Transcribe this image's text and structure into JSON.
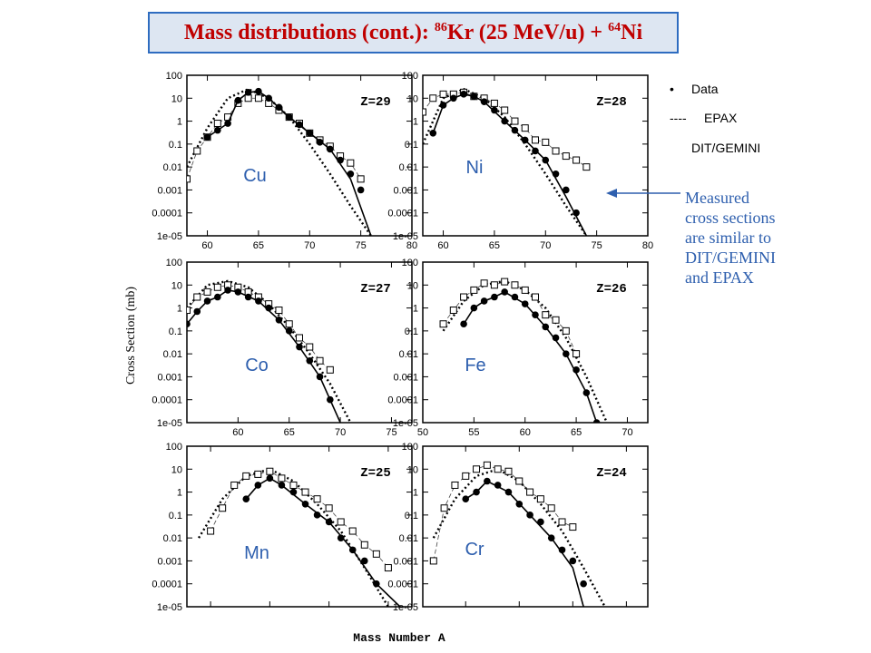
{
  "title": {
    "prefix": "Mass distributions (cont.): ",
    "proj_mass": "86",
    "proj": "Kr (25 MeV/u) + ",
    "targ_mass": "64",
    "targ": "Ni"
  },
  "legend": {
    "data_marker": "•",
    "data_label": "Data",
    "epax_marker": "----",
    "epax_label": "EPAX",
    "dit_marker": "",
    "dit_label": "DIT/GEMINI"
  },
  "annotation": {
    "lines": [
      "Measured",
      "cross sections",
      "are similar to",
      "DIT/GEMINI",
      "and EPAX"
    ]
  },
  "colors": {
    "title": "#c00000",
    "title_border": "#2e6cc0",
    "title_bg": "#dde6f2",
    "element_label": "#2e5fae",
    "annotation": "#2e5fae",
    "arrow": "#2e5fae"
  },
  "chart_data": {
    "type": "scatter",
    "ylabel": "Cross Section (mb)",
    "xlabel": "Mass Number A",
    "yscale": "log",
    "ylim": [
      1e-05,
      100
    ],
    "yticks": [
      "100",
      "10",
      "1",
      "0.1",
      "0.01",
      "0.001",
      "0.0001",
      "1e-05"
    ],
    "panels": [
      {
        "element": "Cu",
        "zlabel": "Z=29",
        "xlim": [
          58,
          80
        ],
        "xticks": [
          60,
          65,
          70,
          75,
          80
        ],
        "show_x_ticklabels": true,
        "data": {
          "x": [
            60,
            61,
            62,
            63,
            64,
            65,
            66,
            67,
            68,
            69,
            70,
            71,
            72,
            73,
            74,
            75
          ],
          "y": [
            0.2,
            0.4,
            0.8,
            8,
            18,
            20,
            10,
            4,
            1.5,
            0.7,
            0.3,
            0.12,
            0.06,
            0.02,
            0.005,
            0.001
          ]
        },
        "dit": {
          "x": [
            58,
            59,
            60,
            61,
            62,
            63,
            64,
            65,
            66,
            67,
            68,
            69,
            70,
            71,
            72,
            73,
            74,
            75
          ],
          "y": [
            0.003,
            0.05,
            0.2,
            0.8,
            1.5,
            6,
            10,
            10,
            6,
            3,
            1.5,
            0.8,
            0.3,
            0.15,
            0.08,
            0.03,
            0.015,
            0.003
          ]
        },
        "epax": {
          "x": [
            58,
            60,
            62,
            64,
            66,
            68,
            70,
            72,
            74,
            76
          ],
          "y": [
            0.01,
            0.5,
            10,
            25,
            10,
            1.5,
            0.1,
            0.005,
            0.0002,
            1e-05
          ]
        },
        "line": {
          "x": [
            60,
            62,
            63,
            64,
            65,
            66,
            68,
            70,
            72,
            74,
            76
          ],
          "y": [
            0.2,
            0.8,
            8,
            18,
            20,
            10,
            1.5,
            0.3,
            0.06,
            0.003,
            1e-05
          ]
        }
      },
      {
        "element": "Ni",
        "zlabel": "Z=28",
        "xlim": [
          58,
          80
        ],
        "xticks": [
          60,
          65,
          70,
          75,
          80
        ],
        "show_x_ticklabels": true,
        "data": {
          "x": [
            59,
            60,
            61,
            62,
            63,
            64,
            65,
            66,
            67,
            68,
            69,
            70,
            71,
            72,
            73
          ],
          "y": [
            0.3,
            5,
            10,
            15,
            12,
            7,
            3,
            1,
            0.4,
            0.15,
            0.05,
            0.02,
            0.005,
            0.001,
            0.0001
          ]
        },
        "dit": {
          "x": [
            58,
            59,
            60,
            61,
            62,
            63,
            64,
            65,
            66,
            67,
            68,
            69,
            70,
            71,
            72,
            73,
            74
          ],
          "y": [
            2.5,
            10,
            15,
            15,
            18,
            12,
            10,
            6,
            3,
            1,
            0.5,
            0.15,
            0.12,
            0.05,
            0.03,
            0.02,
            0.01
          ]
        },
        "epax": {
          "x": [
            58,
            60,
            62,
            64,
            66,
            68,
            70,
            72,
            74
          ],
          "y": [
            0.1,
            10,
            25,
            10,
            1.5,
            0.1,
            0.005,
            0.0002,
            1e-05
          ]
        },
        "line": {
          "x": [
            59,
            60,
            61,
            62,
            63,
            64,
            66,
            68,
            70,
            72,
            74
          ],
          "y": [
            0.3,
            5,
            10,
            15,
            12,
            7,
            1,
            0.15,
            0.02,
            0.0005,
            1e-05
          ]
        }
      },
      {
        "element": "Co",
        "zlabel": "Z=27",
        "xlim": [
          55,
          77
        ],
        "xticks": [
          60,
          65,
          70,
          75
        ],
        "show_x_ticklabels": true,
        "data": {
          "x": [
            55,
            56,
            57,
            58,
            59,
            60,
            61,
            62,
            63,
            64,
            65,
            66,
            67,
            68,
            69
          ],
          "y": [
            0.2,
            0.7,
            2,
            3,
            6,
            5,
            3,
            2,
            1,
            0.3,
            0.1,
            0.02,
            0.005,
            0.001,
            0.0001
          ]
        },
        "dit": {
          "x": [
            55,
            56,
            57,
            58,
            59,
            60,
            61,
            62,
            63,
            64,
            65,
            66,
            67,
            68,
            69
          ],
          "y": [
            0.8,
            3,
            5,
            8,
            10,
            8,
            5,
            3,
            1.5,
            0.8,
            0.2,
            0.05,
            0.02,
            0.005,
            0.002
          ]
        },
        "epax": {
          "x": [
            55,
            57,
            59,
            61,
            63,
            65,
            67,
            69,
            71
          ],
          "y": [
            1,
            10,
            15,
            8,
            1.5,
            0.15,
            0.01,
            0.0005,
            1e-05
          ]
        },
        "line": {
          "x": [
            55,
            56,
            57,
            58,
            59,
            60,
            62,
            64,
            66,
            68,
            70
          ],
          "y": [
            0.2,
            0.7,
            2,
            3,
            6,
            5,
            2,
            0.3,
            0.02,
            0.001,
            1e-05
          ]
        }
      },
      {
        "element": "Fe",
        "zlabel": "Z=26",
        "xlim": [
          50,
          72
        ],
        "xticks": [
          50,
          55,
          60,
          65,
          70
        ],
        "show_x_ticklabels": true,
        "data": {
          "x": [
            54,
            55,
            56,
            57,
            58,
            59,
            60,
            61,
            62,
            63,
            64,
            65,
            66,
            67
          ],
          "y": [
            0.2,
            1,
            2,
            3,
            5,
            3,
            1.5,
            0.5,
            0.15,
            0.05,
            0.01,
            0.002,
            0.0002,
            1e-05
          ]
        },
        "dit": {
          "x": [
            52,
            53,
            54,
            55,
            56,
            57,
            58,
            59,
            60,
            61,
            62,
            63,
            64,
            65
          ],
          "y": [
            0.2,
            0.8,
            3,
            6,
            12,
            10,
            14,
            10,
            6,
            3,
            0.5,
            0.3,
            0.1,
            0.01
          ]
        },
        "epax": {
          "x": [
            52,
            54,
            56,
            58,
            60,
            62,
            64,
            66,
            68
          ],
          "y": [
            0.1,
            2,
            10,
            15,
            6,
            1,
            0.05,
            0.001,
            1e-05
          ]
        },
        "line": {
          "x": [
            54,
            55,
            56,
            57,
            58,
            60,
            62,
            64,
            66,
            67
          ],
          "y": [
            0.2,
            1,
            2,
            3,
            5,
            1.5,
            0.15,
            0.01,
            0.0002,
            1e-05
          ]
        }
      },
      {
        "element": "Mn",
        "zlabel": "Z=25",
        "xlim": [
          48,
          67
        ],
        "xticks": [
          50,
          55,
          60,
          65
        ],
        "show_x_ticklabels": false,
        "data": {
          "x": [
            53,
            54,
            55,
            56,
            57,
            58,
            59,
            60,
            61,
            62,
            63,
            64
          ],
          "y": [
            0.5,
            2,
            4,
            2,
            1,
            0.3,
            0.1,
            0.05,
            0.01,
            0.003,
            0.001,
            0.0001
          ]
        },
        "dit": {
          "x": [
            50,
            51,
            52,
            53,
            54,
            55,
            56,
            57,
            58,
            59,
            60,
            61,
            62,
            63,
            64,
            65
          ],
          "y": [
            0.02,
            0.2,
            2,
            5,
            6,
            8,
            4,
            2,
            1,
            0.5,
            0.2,
            0.05,
            0.02,
            0.005,
            0.002,
            0.0005
          ]
        },
        "epax": {
          "x": [
            49,
            51,
            53,
            55,
            57,
            59,
            61,
            63,
            65
          ],
          "y": [
            0.01,
            0.5,
            5,
            10,
            3,
            0.3,
            0.02,
            0.0005,
            1e-05
          ]
        },
        "line": {
          "x": [
            53,
            54,
            55,
            56,
            58,
            60,
            62,
            64,
            66
          ],
          "y": [
            0.5,
            2,
            4,
            2,
            0.3,
            0.05,
            0.003,
            0.0001,
            1e-05
          ]
        }
      },
      {
        "element": "Cr",
        "zlabel": "Z=24",
        "xlim": [
          46,
          67
        ],
        "xticks": [
          50,
          55,
          60,
          65
        ],
        "show_x_ticklabels": false,
        "data": {
          "x": [
            50,
            51,
            52,
            53,
            54,
            55,
            56,
            57,
            58,
            59,
            60,
            61
          ],
          "y": [
            0.5,
            1,
            3,
            2,
            1,
            0.3,
            0.1,
            0.05,
            0.01,
            0.003,
            0.001,
            0.0001
          ]
        },
        "dit": {
          "x": [
            47,
            48,
            49,
            50,
            51,
            52,
            53,
            54,
            55,
            56,
            57,
            58,
            59,
            60
          ],
          "y": [
            0.001,
            0.2,
            2,
            5,
            10,
            15,
            10,
            8,
            3,
            1,
            0.5,
            0.2,
            0.05,
            0.03
          ]
        },
        "epax": {
          "x": [
            47,
            49,
            51,
            53,
            55,
            57,
            59,
            61,
            63
          ],
          "y": [
            0.01,
            0.5,
            5,
            10,
            3,
            0.3,
            0.02,
            0.0005,
            1e-05
          ]
        },
        "line": {
          "x": [
            50,
            51,
            52,
            54,
            56,
            58,
            60,
            61
          ],
          "y": [
            0.5,
            1,
            3,
            1,
            0.1,
            0.01,
            0.0005,
            1e-05
          ]
        }
      }
    ]
  }
}
